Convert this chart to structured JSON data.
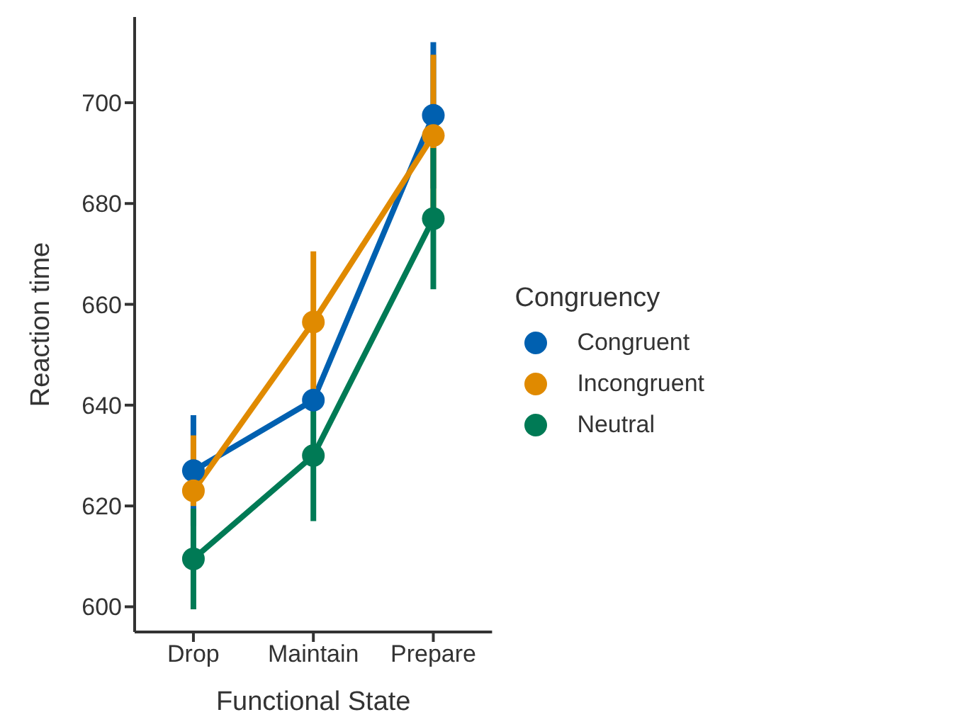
{
  "chart_data": {
    "type": "line",
    "xlabel": "Functional State",
    "ylabel": "Reaction time",
    "legend_title": "Congruency",
    "categories": [
      "Drop",
      "Maintain",
      "Prepare"
    ],
    "series": [
      {
        "name": "Congruent",
        "color": "#0060b0",
        "values": [
          627,
          641,
          697.5
        ],
        "errors": [
          11,
          null,
          14.5
        ]
      },
      {
        "name": "Incongruent",
        "color": "#e08a00",
        "values": [
          623,
          656.5,
          693.5
        ],
        "errors": [
          [
            620,
            634
          ],
          14,
          16
        ]
      },
      {
        "name": "Neutral",
        "color": "#007a55",
        "values": [
          609.5,
          630,
          677
        ],
        "errors": [
          10,
          13,
          14
        ]
      }
    ],
    "ylim": [
      595,
      717
    ],
    "yticks": [
      600,
      620,
      640,
      660,
      680,
      700
    ],
    "grid": false,
    "legend": "right",
    "marker": "circle",
    "line_style": "solid"
  }
}
